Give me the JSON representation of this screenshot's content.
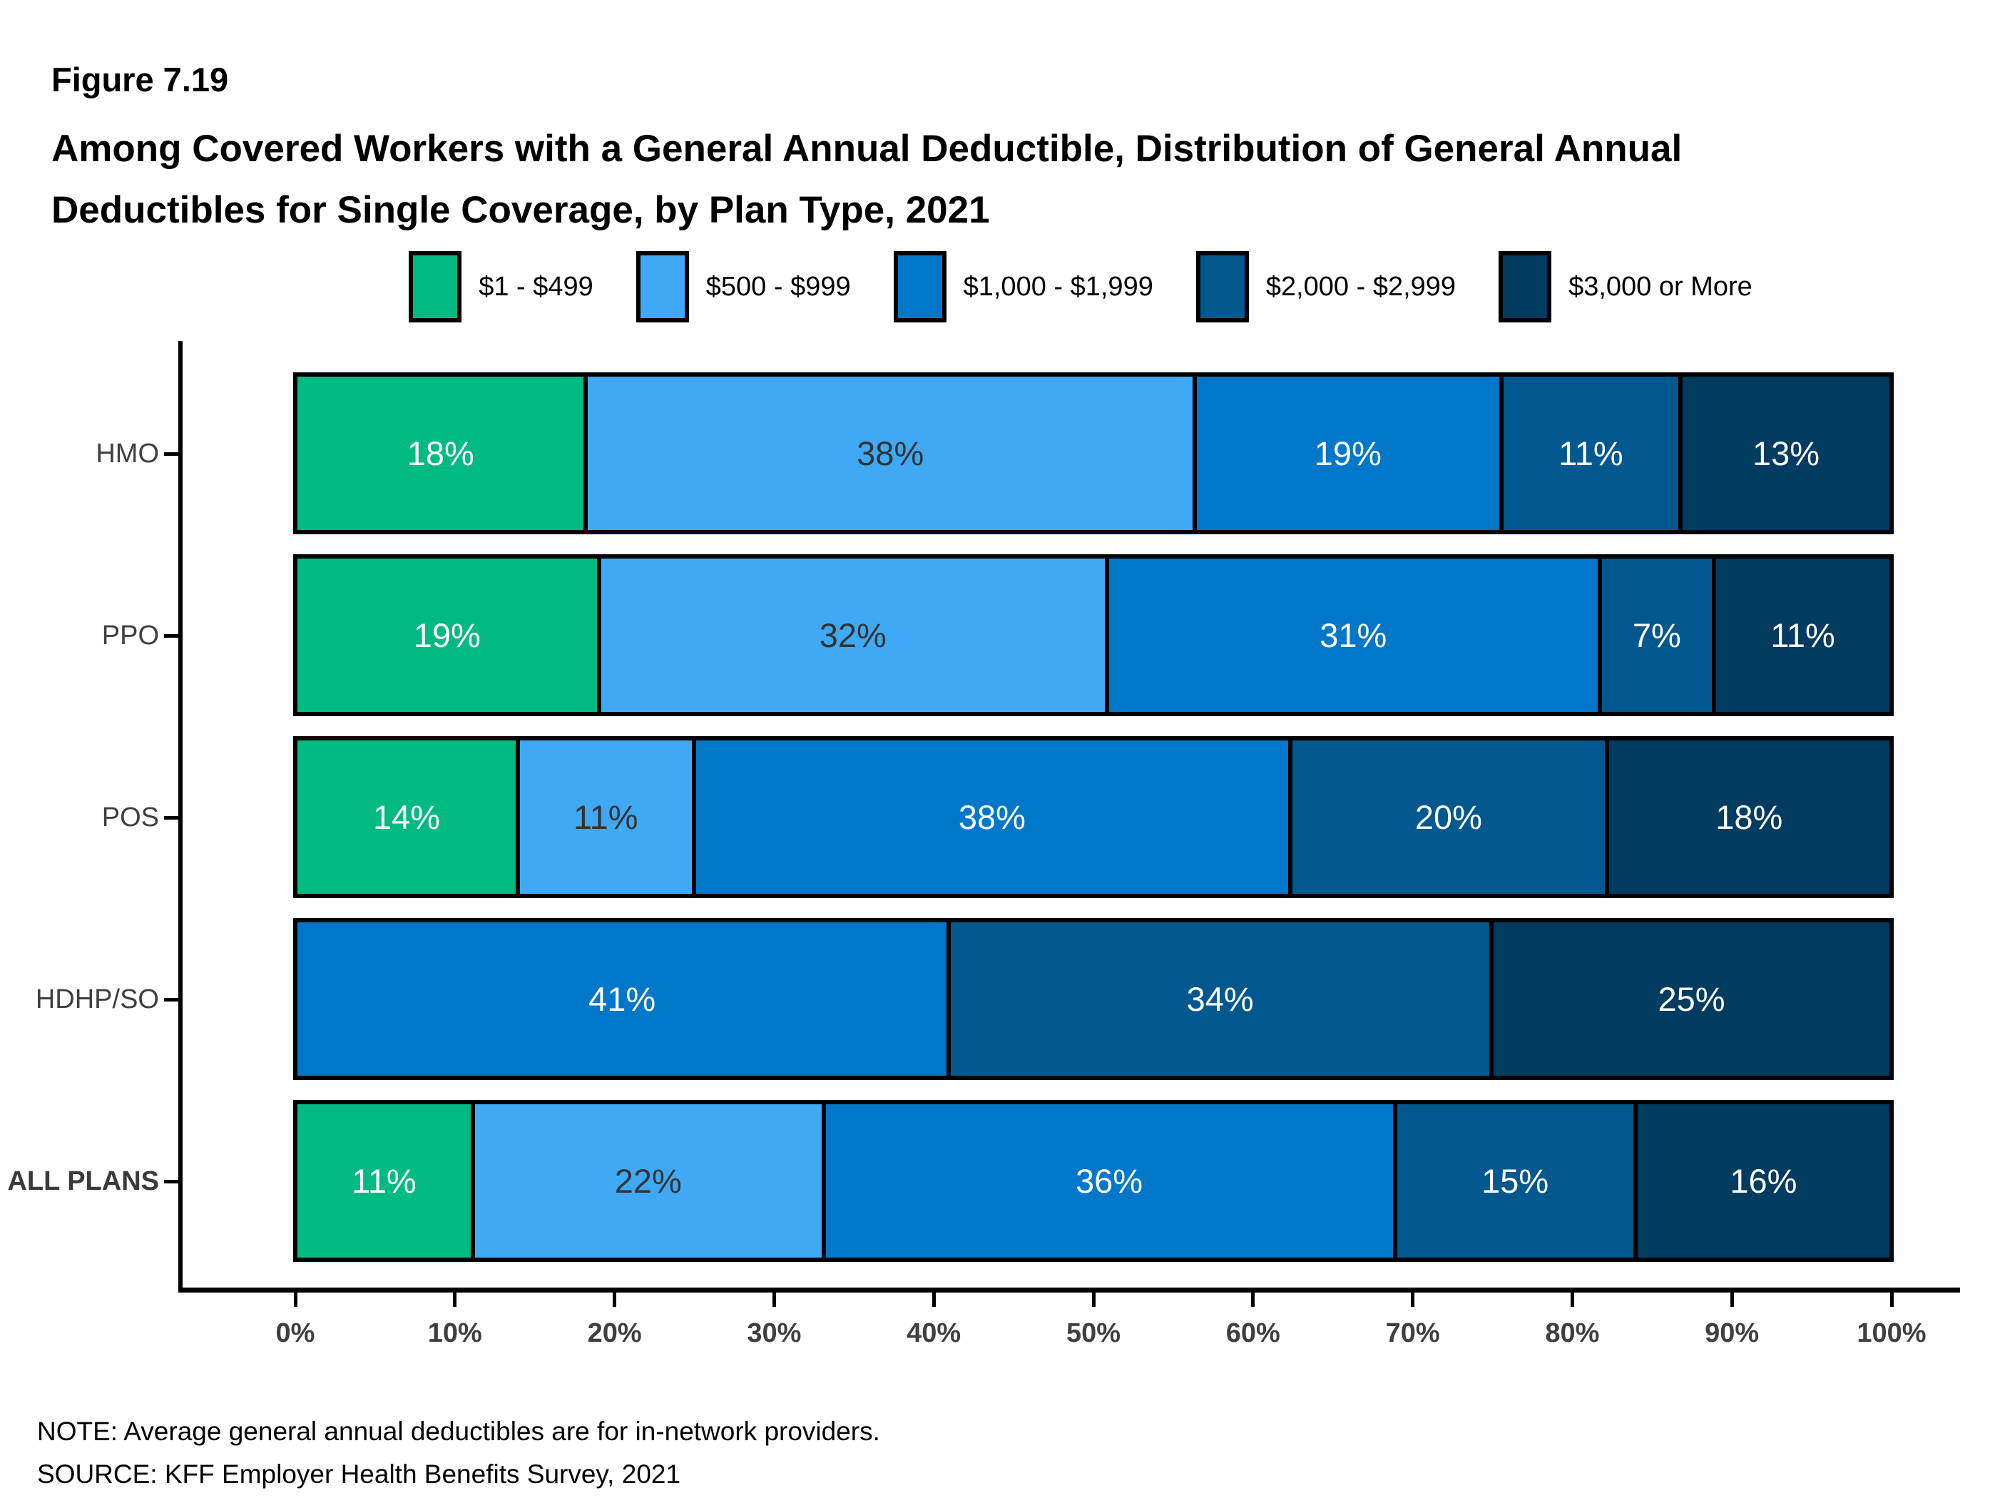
{
  "header": {
    "figure_label": "Figure 7.19",
    "title_lines": [
      "Among Covered Workers with a General Annual Deductible, Distribution of General Annual",
      "Deductibles for Single Coverage, by Plan Type, 2021"
    ]
  },
  "chart_data": {
    "type": "bar",
    "orientation": "horizontal-stacked",
    "title": "Among Covered Workers with a General Annual Deductible, Distribution of General Annual Deductibles for Single Coverage, by Plan Type, 2021",
    "categories": [
      "HMO",
      "PPO",
      "POS",
      "HDHP/SO",
      "ALL PLANS"
    ],
    "series": [
      {
        "name": "$1 - $499",
        "color": "#00BA81",
        "label_color": "#ffffff",
        "values": [
          18,
          19,
          14,
          0,
          11
        ]
      },
      {
        "name": "$500 - $999",
        "color": "#3FA9F6",
        "label_color": "#333333",
        "values": [
          38,
          32,
          11,
          0,
          22
        ]
      },
      {
        "name": "$1,000 - $1,999",
        "color": "#0077C8",
        "label_color": "#ffffff",
        "values": [
          19,
          31,
          38,
          41,
          36
        ]
      },
      {
        "name": "$2,000 - $2,999",
        "color": "#00588E",
        "label_color": "#ffffff",
        "values": [
          11,
          7,
          20,
          34,
          15
        ]
      },
      {
        "name": "$3,000 or More",
        "color": "#003B60",
        "label_color": "#ffffff",
        "values": [
          13,
          11,
          18,
          25,
          16
        ]
      }
    ],
    "value_suffix": "%",
    "x_ticks": [
      "0%",
      "10%",
      "20%",
      "30%",
      "40%",
      "50%",
      "60%",
      "70%",
      "80%",
      "90%",
      "100%"
    ],
    "xlim": [
      0,
      100
    ],
    "grid": false,
    "legend_position": "top"
  },
  "footer": {
    "note": "NOTE: Average general annual deductibles are for in-network providers.",
    "source": "SOURCE: KFF Employer Health Benefits Survey, 2021"
  }
}
